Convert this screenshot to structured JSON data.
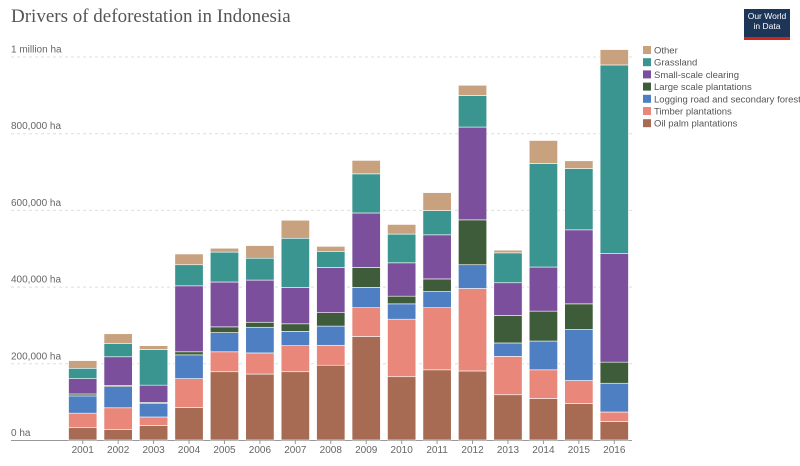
{
  "title": "Drivers of deforestation in Indonesia",
  "logo": {
    "line1": "Our World",
    "line2": "in Data"
  },
  "chart_data": {
    "type": "bar",
    "stacked": true,
    "title": "Drivers of deforestation in Indonesia",
    "xlabel": "",
    "ylabel": "",
    "ylim": [
      0,
      1050000
    ],
    "yticks": [
      0,
      200000,
      400000,
      600000,
      800000,
      1000000
    ],
    "ytick_labels": [
      "0 ha",
      "200,000 ha",
      "400,000 ha",
      "600,000 ha",
      "800,000 ha",
      "1 million ha"
    ],
    "grid": true,
    "legend_position": "top-right",
    "categories": [
      "2001",
      "2002",
      "2003",
      "2004",
      "2005",
      "2006",
      "2007",
      "2008",
      "2009",
      "2010",
      "2011",
      "2012",
      "2013",
      "2014",
      "2015",
      "2016"
    ],
    "series": [
      {
        "name": "Oil palm plantations",
        "color": "#a76b53",
        "values": [
          32000,
          27000,
          38000,
          85000,
          178000,
          172000,
          178000,
          195000,
          270000,
          165000,
          183000,
          180000,
          118000,
          108000,
          95000,
          48000
        ]
      },
      {
        "name": "Timber plantations",
        "color": "#e8877a",
        "values": [
          38000,
          57000,
          22000,
          75000,
          52000,
          55000,
          68000,
          52000,
          75000,
          150000,
          162000,
          215000,
          100000,
          75000,
          60000,
          25000
        ]
      },
      {
        "name": "Logging road and secondary forests",
        "color": "#4e7fc2",
        "values": [
          45000,
          55000,
          35000,
          62000,
          50000,
          67000,
          37000,
          50000,
          53000,
          40000,
          42000,
          62000,
          35000,
          75000,
          133000,
          75000
        ]
      },
      {
        "name": "Large scale plantations",
        "color": "#3f5c3a",
        "values": [
          5000,
          3000,
          3000,
          8000,
          15000,
          13000,
          20000,
          35000,
          52000,
          20000,
          33000,
          117000,
          72000,
          78000,
          67000,
          55000
        ]
      },
      {
        "name": "Small-scale clearing",
        "color": "#7b4f9c",
        "values": [
          40000,
          75000,
          45000,
          172000,
          117000,
          110000,
          95000,
          118000,
          142000,
          87000,
          115000,
          242000,
          85000,
          115000,
          193000,
          283000
        ]
      },
      {
        "name": "Grassland",
        "color": "#3a9591",
        "values": [
          27000,
          35000,
          93000,
          55000,
          78000,
          57000,
          128000,
          42000,
          102000,
          75000,
          63000,
          82000,
          78000,
          270000,
          160000,
          492000
        ]
      },
      {
        "name": "Other",
        "color": "#c8a17e",
        "values": [
          20000,
          25000,
          10000,
          28000,
          10000,
          33000,
          47000,
          13000,
          35000,
          25000,
          47000,
          27000,
          7000,
          60000,
          20000,
          40000
        ]
      }
    ],
    "legend_order": [
      "Other",
      "Grassland",
      "Small-scale clearing",
      "Large scale plantations",
      "Logging road and secondary forests",
      "Timber plantations",
      "Oil palm plantations"
    ]
  }
}
